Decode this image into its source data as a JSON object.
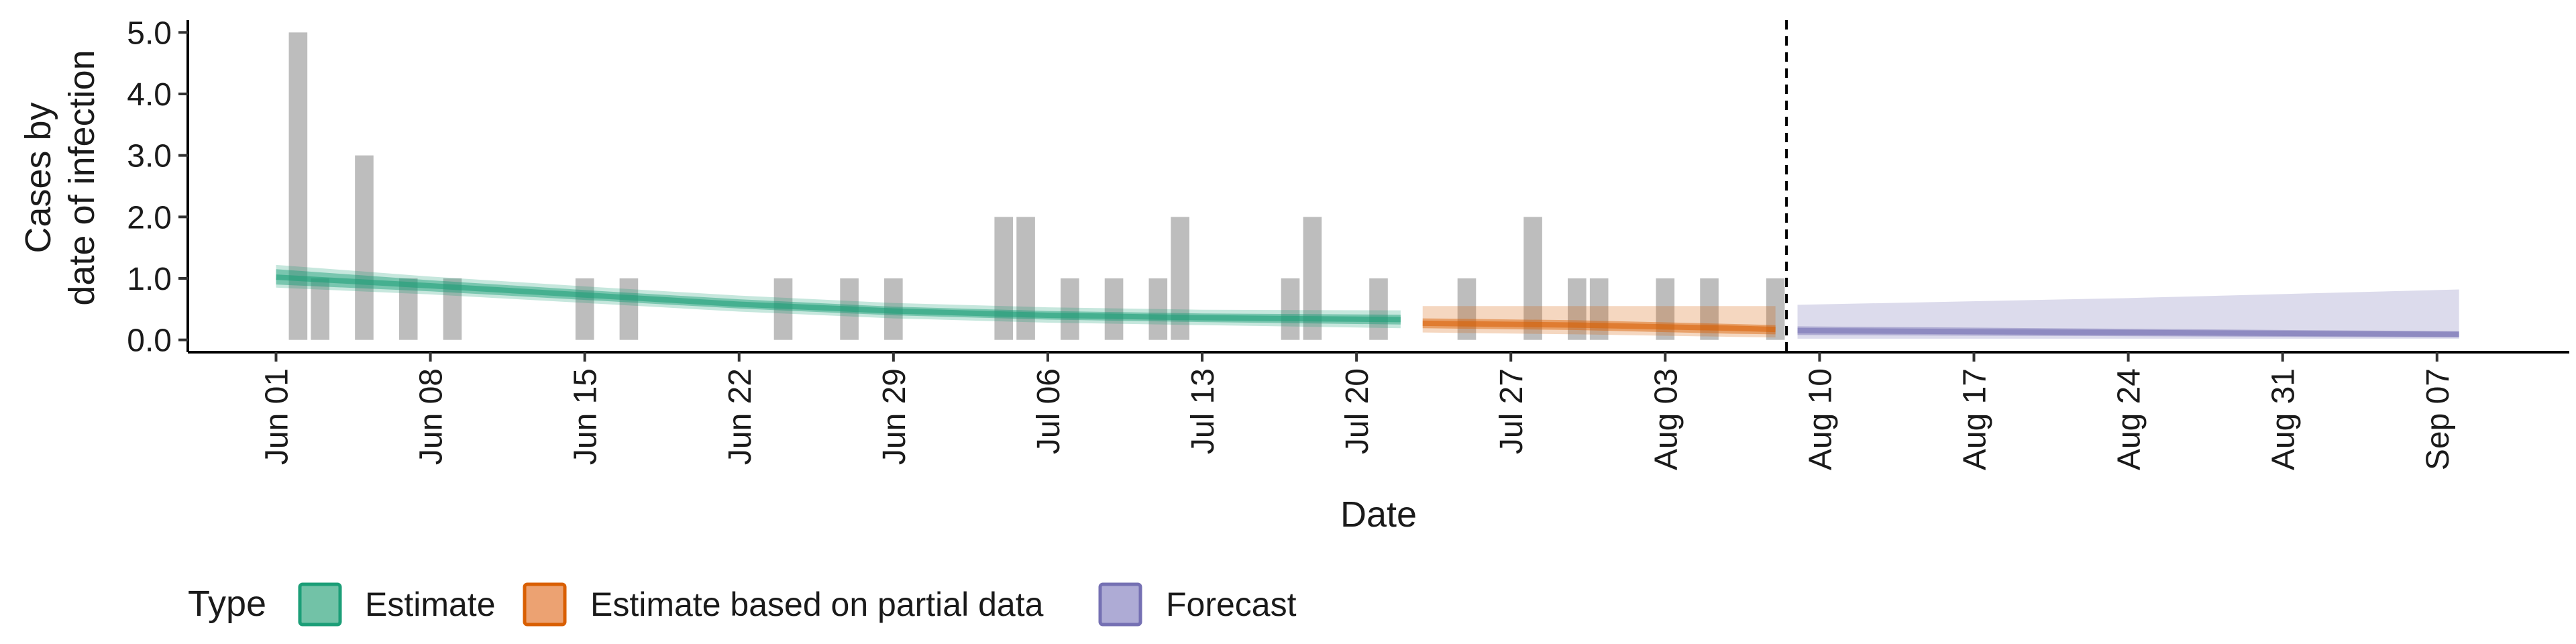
{
  "chart_data": {
    "type": "bar",
    "xlabel": "Date",
    "ylabel_lines": [
      "Cases by",
      "date of infection"
    ],
    "ylim": [
      -0.2,
      5.2
    ],
    "y_ticks": [
      0.0,
      1.0,
      2.0,
      3.0,
      4.0,
      5.0
    ],
    "y_tick_labels": [
      "0.0",
      "1.0",
      "2.0",
      "3.0",
      "4.0",
      "5.0"
    ],
    "x_range": [
      "2020-05-28",
      "2020-09-13"
    ],
    "x_ticks": [
      "2020-06-01",
      "2020-06-08",
      "2020-06-15",
      "2020-06-22",
      "2020-06-29",
      "2020-07-06",
      "2020-07-13",
      "2020-07-20",
      "2020-07-27",
      "2020-08-03",
      "2020-08-10",
      "2020-08-17",
      "2020-08-24",
      "2020-08-31",
      "2020-09-07"
    ],
    "x_tick_labels": [
      "Jun 01",
      "Jun 08",
      "Jun 15",
      "Jun 22",
      "Jun 29",
      "Jul 06",
      "Jul 13",
      "Jul 20",
      "Jul 27",
      "Aug 03",
      "Aug 10",
      "Aug 17",
      "Aug 24",
      "Aug 31",
      "Sep 07"
    ],
    "cutoff_date": "2020-08-08",
    "observed_cases": [
      {
        "date": "2020-06-02",
        "value": 5
      },
      {
        "date": "2020-06-03",
        "value": 1
      },
      {
        "date": "2020-06-05",
        "value": 3
      },
      {
        "date": "2020-06-07",
        "value": 1
      },
      {
        "date": "2020-06-09",
        "value": 1
      },
      {
        "date": "2020-06-15",
        "value": 1
      },
      {
        "date": "2020-06-17",
        "value": 1
      },
      {
        "date": "2020-06-24",
        "value": 1
      },
      {
        "date": "2020-06-27",
        "value": 1
      },
      {
        "date": "2020-06-29",
        "value": 1
      },
      {
        "date": "2020-07-04",
        "value": 2
      },
      {
        "date": "2020-07-05",
        "value": 2
      },
      {
        "date": "2020-07-07",
        "value": 1
      },
      {
        "date": "2020-07-09",
        "value": 1
      },
      {
        "date": "2020-07-11",
        "value": 1
      },
      {
        "date": "2020-07-12",
        "value": 2
      },
      {
        "date": "2020-07-17",
        "value": 1
      },
      {
        "date": "2020-07-18",
        "value": 2
      },
      {
        "date": "2020-07-21",
        "value": 1
      },
      {
        "date": "2020-07-25",
        "value": 1
      },
      {
        "date": "2020-07-28",
        "value": 2
      },
      {
        "date": "2020-07-30",
        "value": 1
      },
      {
        "date": "2020-07-31",
        "value": 1
      },
      {
        "date": "2020-08-03",
        "value": 1
      },
      {
        "date": "2020-08-05",
        "value": 1
      },
      {
        "date": "2020-08-08",
        "value": 1
      }
    ],
    "series": [
      {
        "name": "Estimate",
        "color": "#1b9e77",
        "points": [
          {
            "date": "2020-06-01",
            "median": 1.02,
            "lower": 0.9,
            "upper": 1.15,
            "lower90": 0.85,
            "upper90": 1.22
          },
          {
            "date": "2020-06-08",
            "median": 0.88,
            "lower": 0.79,
            "upper": 0.97,
            "lower90": 0.74,
            "upper90": 1.03
          },
          {
            "date": "2020-06-15",
            "median": 0.73,
            "lower": 0.65,
            "upper": 0.81,
            "lower90": 0.6,
            "upper90": 0.87
          },
          {
            "date": "2020-06-22",
            "median": 0.58,
            "lower": 0.51,
            "upper": 0.66,
            "lower90": 0.46,
            "upper90": 0.72
          },
          {
            "date": "2020-06-29",
            "median": 0.47,
            "lower": 0.4,
            "upper": 0.54,
            "lower90": 0.35,
            "upper90": 0.6
          },
          {
            "date": "2020-07-06",
            "median": 0.4,
            "lower": 0.33,
            "upper": 0.47,
            "lower90": 0.28,
            "upper90": 0.53
          },
          {
            "date": "2020-07-13",
            "median": 0.36,
            "lower": 0.29,
            "upper": 0.43,
            "lower90": 0.24,
            "upper90": 0.49
          },
          {
            "date": "2020-07-22",
            "median": 0.33,
            "lower": 0.25,
            "upper": 0.41,
            "lower90": 0.19,
            "upper90": 0.48
          }
        ]
      },
      {
        "name": "Estimate based on partial data",
        "color": "#d95f02",
        "points": [
          {
            "date": "2020-07-23",
            "median": 0.27,
            "lower": 0.19,
            "upper": 0.35,
            "lower90": 0.12,
            "upper90": 0.55
          },
          {
            "date": "2020-07-30",
            "median": 0.24,
            "lower": 0.16,
            "upper": 0.32,
            "lower90": 0.09,
            "upper90": 0.55
          },
          {
            "date": "2020-08-06",
            "median": 0.19,
            "lower": 0.1,
            "upper": 0.26,
            "lower90": 0.05,
            "upper90": 0.55
          },
          {
            "date": "2020-08-08",
            "median": 0.17,
            "lower": 0.09,
            "upper": 0.24,
            "lower90": 0.04,
            "upper90": 0.55
          }
        ]
      },
      {
        "name": "Forecast",
        "color": "#7570b3",
        "points": [
          {
            "date": "2020-08-09",
            "median": 0.15,
            "lower": 0.08,
            "upper": 0.22,
            "lower90": 0.02,
            "upper90": 0.57
          },
          {
            "date": "2020-08-24",
            "median": 0.12,
            "lower": 0.06,
            "upper": 0.18,
            "lower90": 0.02,
            "upper90": 0.68
          },
          {
            "date": "2020-09-08",
            "median": 0.09,
            "lower": 0.04,
            "upper": 0.14,
            "lower90": 0.02,
            "upper90": 0.82
          }
        ]
      }
    ],
    "bar_color": "#bdbdbd",
    "legend": {
      "title": "Type",
      "placement": "bottom-left",
      "items": [
        {
          "label": "Estimate",
          "fill": "#72c2a7",
          "stroke": "#1b9e77"
        },
        {
          "label": "Estimate based on partial data",
          "fill": "#eca272",
          "stroke": "#d95f02"
        },
        {
          "label": "Forecast",
          "fill": "#aeabd5",
          "stroke": "#7570b3"
        }
      ]
    }
  }
}
